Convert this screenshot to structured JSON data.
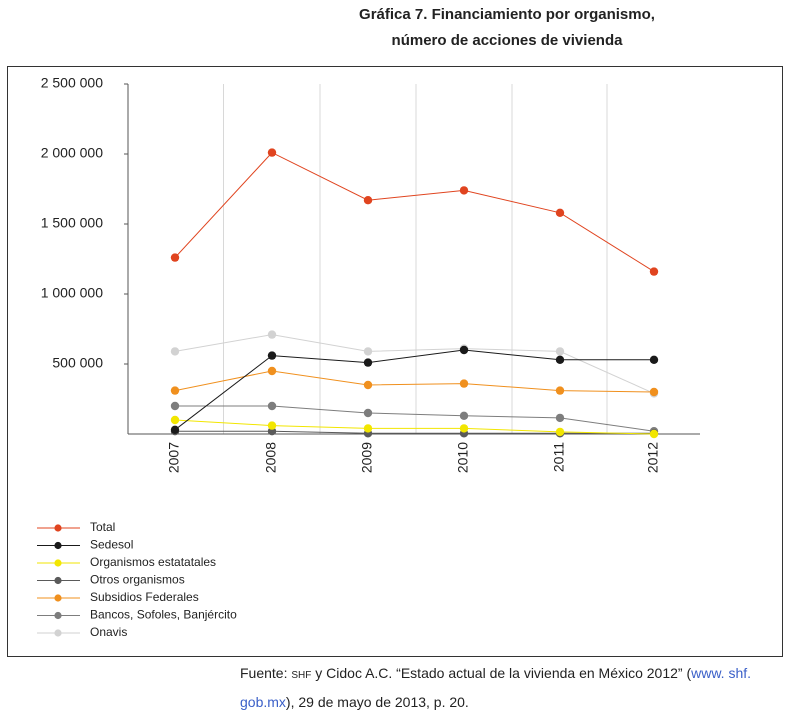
{
  "chart_data": {
    "type": "line",
    "title": "Gráfica 7. Financiamiento por organismo,",
    "subtitle": "número de acciones de vivienda",
    "categories": [
      "2007",
      "2008",
      "2009",
      "2010",
      "2011",
      "2012"
    ],
    "ylim": [
      0,
      2500000
    ],
    "yticks": [
      {
        "value": 500000,
        "label": "500 000"
      },
      {
        "value": 1000000,
        "label": "1 000 000"
      },
      {
        "value": 1500000,
        "label": "1 500 000"
      },
      {
        "value": 2000000,
        "label": "2 000 000"
      },
      {
        "value": 2500000,
        "label": "2 500 000"
      }
    ],
    "grid": true,
    "legend": "bottom-left",
    "series": [
      {
        "name": "Total",
        "color": "#e0441f",
        "values": [
          1260000,
          2010000,
          1670000,
          1740000,
          1580000,
          1160000
        ]
      },
      {
        "name": "Sedesol",
        "color": "#1a1a1a",
        "values": [
          30000,
          560000,
          510000,
          600000,
          530000,
          530000
        ]
      },
      {
        "name": "Organismos estatatales",
        "color": "#f2e600",
        "values": [
          100000,
          60000,
          40000,
          40000,
          15000,
          0
        ]
      },
      {
        "name": "Otros organismos",
        "color": "#5a5a5a",
        "values": [
          20000,
          20000,
          5000,
          5000,
          5000,
          5000
        ]
      },
      {
        "name": "Subsidios Federales",
        "color": "#f0901e",
        "values": [
          310000,
          450000,
          350000,
          360000,
          310000,
          300000
        ]
      },
      {
        "name": "Bancos, Sofoles, Banjército",
        "color": "#7d7d7d",
        "values": [
          200000,
          200000,
          150000,
          130000,
          115000,
          20000
        ]
      },
      {
        "name": "Onavis",
        "color": "#d2d2d2",
        "values": [
          590000,
          710000,
          590000,
          610000,
          590000,
          290000
        ]
      }
    ]
  },
  "source": {
    "parts": [
      "Fuente: ",
      "SHF",
      " y Cidoc A.C. “Estado actual de la vivienda en México 2012” (",
      "www. shf.",
      "gob.mx",
      "), 29 de mayo de 2013, p. 20."
    ]
  }
}
